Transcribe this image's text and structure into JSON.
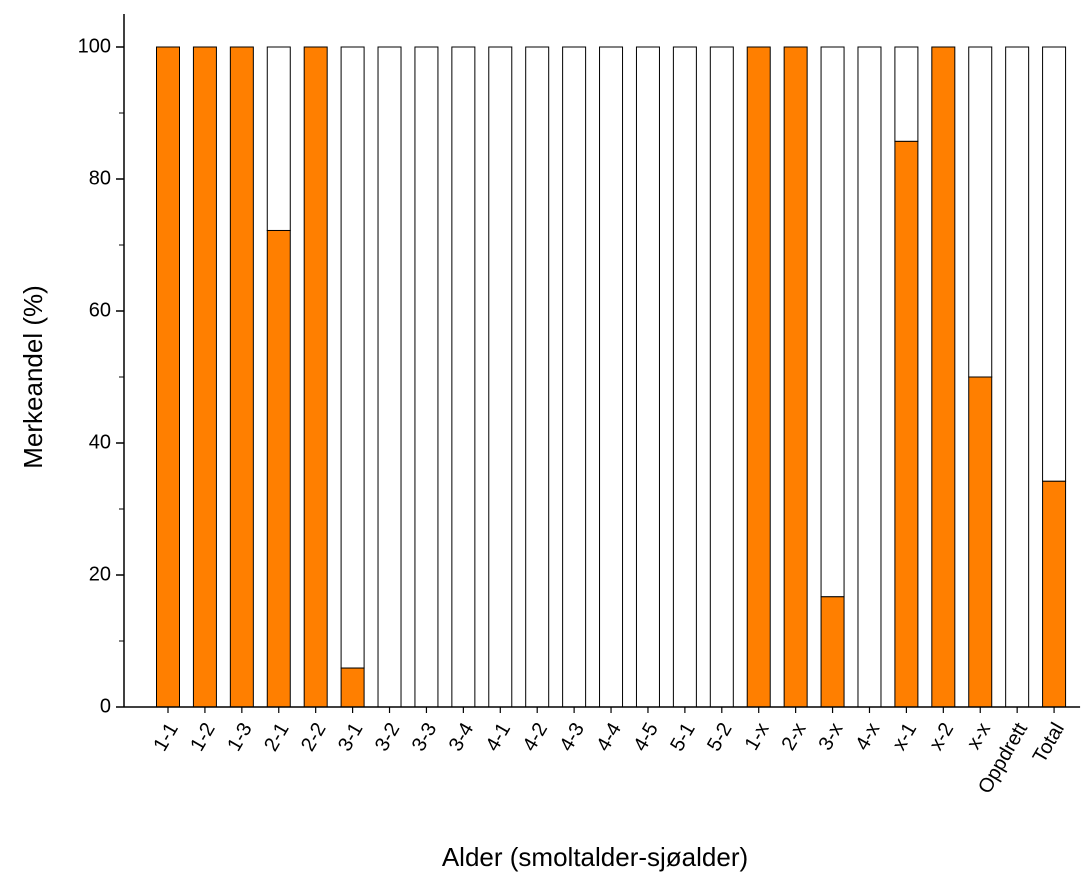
{
  "chart_data": {
    "type": "bar",
    "stacked": true,
    "xlabel": "Alder (smoltalder-sjøalder)",
    "ylabel": "Merkeandel (%)",
    "ylim": [
      0,
      100
    ],
    "yticks": [
      0,
      20,
      40,
      60,
      80,
      100
    ],
    "grid": false,
    "categories": [
      "1-1",
      "1-2",
      "1-3",
      "2-1",
      "2-2",
      "3-1",
      "3-2",
      "3-3",
      "3-4",
      "4-1",
      "4-2",
      "4-3",
      "4-4",
      "4-5",
      "5-1",
      "5-2",
      "1-x",
      "2-x",
      "3-x",
      "4-x",
      "x-1",
      "x-2",
      "x-x",
      "Oppdrett",
      "Total"
    ],
    "series": [
      {
        "values": [
          100,
          100,
          100,
          72.2,
          100,
          5.9,
          0,
          0,
          0,
          0,
          0,
          0,
          0,
          0,
          0,
          0,
          100,
          100,
          16.7,
          0,
          85.7,
          100,
          50,
          0,
          34.2
        ]
      },
      {
        "values": [
          0,
          0,
          0,
          27.8,
          0,
          94.1,
          100,
          100,
          100,
          100,
          100,
          100,
          100,
          100,
          100,
          100,
          0,
          0,
          83.3,
          100,
          14.3,
          0,
          50,
          100,
          65.8
        ]
      }
    ],
    "colors": {
      "marked": "#ff7f00",
      "unmarked": "#ffffff",
      "outline": "#000000"
    }
  }
}
